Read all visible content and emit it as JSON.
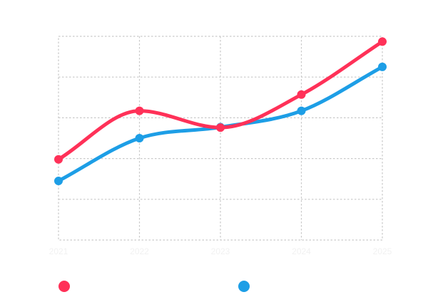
{
  "chart_data": {
    "type": "line",
    "title": "",
    "xlabel": "",
    "ylabel": "",
    "x_ticks": [
      "2021",
      "2022",
      "2023",
      "2024",
      "2025"
    ],
    "y_ticks": [],
    "grid": true,
    "grid_style": "dotted",
    "ylim": [
      0,
      5
    ],
    "legend": {
      "position": "bottom",
      "entries": [
        "",
        ""
      ]
    },
    "series": [
      {
        "name": "",
        "color": "#ff3158",
        "values": [
          1.98,
          3.17,
          2.76,
          3.57,
          4.87
        ]
      },
      {
        "name": "",
        "color": "#1d9ee6",
        "values": [
          1.45,
          2.5,
          2.77,
          3.17,
          4.25
        ]
      }
    ]
  }
}
